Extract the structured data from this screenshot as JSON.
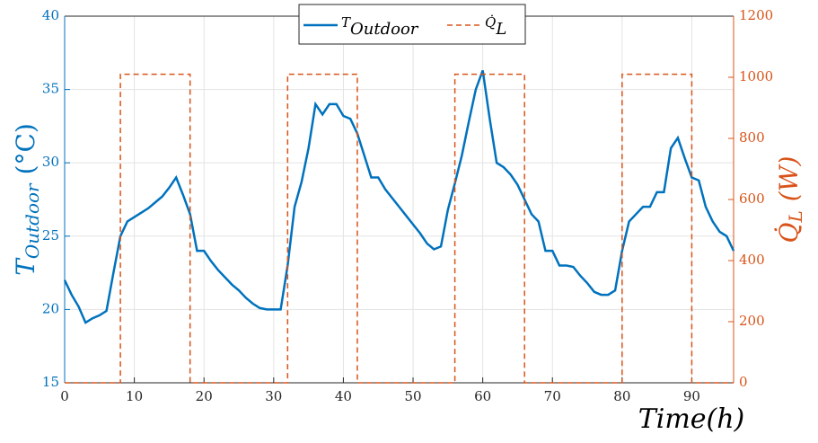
{
  "chart_data": {
    "type": "line",
    "x_label": "Time(h)",
    "y_label": {
      "main": "T",
      "sub": "Outdoor",
      "unit": "(°C)"
    },
    "y2_label": {
      "main": "Q̇",
      "sub": "L",
      "unit": "(W)"
    },
    "xlim": [
      0,
      96
    ],
    "xticks": [
      0,
      10,
      20,
      30,
      40,
      50,
      60,
      70,
      80,
      90
    ],
    "ylim": [
      15,
      40
    ],
    "yticks": [
      15,
      20,
      25,
      30,
      35,
      40
    ],
    "y2lim": [
      0,
      1200
    ],
    "y2ticks": [
      0,
      200,
      400,
      600,
      800,
      1000,
      1200
    ],
    "grid": true,
    "legend": "top-center",
    "series": [
      {
        "name": "T",
        "subscript": "Outdoor",
        "color": "#0072bd",
        "style": "solid",
        "x": [
          0,
          1,
          2,
          3,
          4,
          5,
          6,
          7,
          8,
          9,
          10,
          11,
          12,
          13,
          14,
          15,
          16,
          17,
          18,
          19,
          20,
          21,
          22,
          23,
          24,
          25,
          26,
          27,
          28,
          29,
          30,
          31,
          32,
          33,
          34,
          35,
          36,
          37,
          38,
          39,
          40,
          41,
          42,
          43,
          44,
          45,
          46,
          47,
          48,
          49,
          50,
          51,
          52,
          53,
          54,
          55,
          56,
          57,
          58,
          59,
          60,
          61,
          62,
          63,
          64,
          65,
          66,
          67,
          68,
          69,
          70,
          71,
          72,
          73,
          74,
          75,
          76,
          77,
          78,
          79,
          80,
          81,
          82,
          83,
          84,
          85,
          86,
          87,
          88,
          89,
          90,
          91,
          92,
          93,
          94,
          95,
          96
        ],
        "values": [
          22,
          21,
          20.2,
          19.1,
          19.4,
          19.6,
          19.9,
          22.5,
          25,
          26,
          26.3,
          26.6,
          26.9,
          27.3,
          27.7,
          28.3,
          29,
          27.8,
          26.5,
          24,
          24,
          23.3,
          22.7,
          22.2,
          21.7,
          21.3,
          20.8,
          20.4,
          20.1,
          20,
          20,
          20,
          23,
          27,
          28.7,
          31,
          34,
          33.3,
          34,
          34,
          33.2,
          33,
          32,
          30.5,
          29,
          29,
          28.2,
          27.6,
          27,
          26.4,
          25.8,
          25.2,
          24.5,
          24.1,
          24.3,
          26.8,
          28.6,
          30.5,
          32.8,
          35,
          36.3,
          33,
          30,
          29.7,
          29.2,
          28.5,
          27.5,
          26.5,
          26,
          24,
          24,
          23,
          23,
          22.9,
          22.3,
          21.8,
          21.2,
          21,
          21,
          21.3,
          24,
          26,
          26.5,
          27,
          27,
          28,
          28,
          31,
          31.7,
          30.3,
          29,
          28.8,
          27,
          26,
          25.3,
          25,
          24
        ]
      },
      {
        "name": "Q̇",
        "subscript": "L",
        "color": "#d95319",
        "style": "dashed",
        "axis": "y2",
        "x": [
          0,
          8,
          8,
          18,
          18,
          32,
          32,
          42,
          42,
          56,
          56,
          66,
          66,
          80,
          80,
          90,
          90,
          96
        ],
        "values": [
          0,
          0,
          1010,
          1010,
          0,
          0,
          1010,
          1010,
          0,
          0,
          1010,
          1010,
          0,
          0,
          1010,
          1010,
          0,
          0
        ]
      }
    ]
  }
}
